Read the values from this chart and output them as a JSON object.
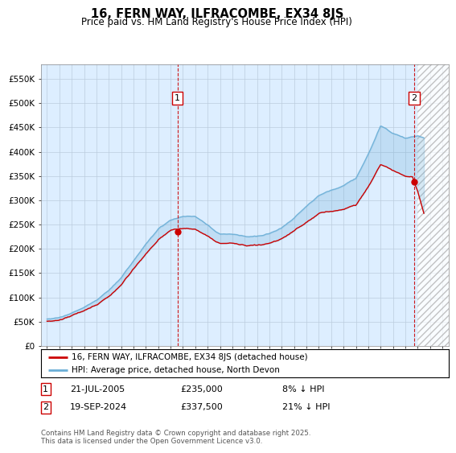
{
  "title": "16, FERN WAY, ILFRACOMBE, EX34 8JS",
  "subtitle": "Price paid vs. HM Land Registry's House Price Index (HPI)",
  "ylim": [
    0,
    580000
  ],
  "yticks": [
    0,
    50000,
    100000,
    150000,
    200000,
    250000,
    300000,
    350000,
    400000,
    450000,
    500000,
    550000
  ],
  "ytick_labels": [
    "£0",
    "£50K",
    "£100K",
    "£150K",
    "£200K",
    "£250K",
    "£300K",
    "£350K",
    "£400K",
    "£450K",
    "£500K",
    "£550K"
  ],
  "hpi_color": "#6aaed6",
  "price_color": "#cc0000",
  "dashed_color": "#cc0000",
  "bg_color": "#ffffff",
  "chart_bg_color": "#ddeeff",
  "grid_color": "#bbccdd",
  "future_hatch_color": "#cccccc",
  "legend_text1": "16, FERN WAY, ILFRACOMBE, EX34 8JS (detached house)",
  "legend_text2": "HPI: Average price, detached house, North Devon",
  "transaction1_label": "1",
  "transaction1_date": "21-JUL-2005",
  "transaction1_price": "£235,000",
  "transaction1_hpi": "8% ↓ HPI",
  "transaction2_label": "2",
  "transaction2_date": "19-SEP-2024",
  "transaction2_price": "£337,500",
  "transaction2_hpi": "21% ↓ HPI",
  "footnote": "Contains HM Land Registry data © Crown copyright and database right 2025.\nThis data is licensed under the Open Government Licence v3.0.",
  "transaction1_x": 2005.55,
  "transaction1_y": 235000,
  "transaction2_x": 2024.72,
  "transaction2_y": 337500,
  "future_start_x": 2025.0,
  "xmin": 1994.5,
  "xmax": 2027.5
}
